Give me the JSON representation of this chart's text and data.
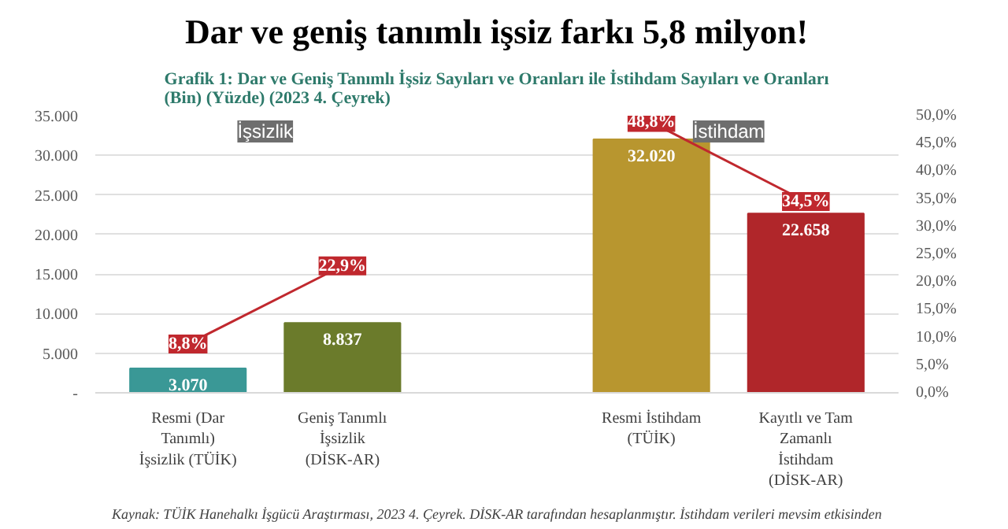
{
  "chart_data": {
    "type": "bar",
    "title": "Dar ve geniş tanımlı işsiz farkı 5,8 milyon!",
    "subtitle": "Grafik 1: Dar ve Geniş Tanımlı İşsiz Sayıları ve Oranları ile İstihdam Sayıları ve Oranları\n(Bin) (Yüzde) (2023 4. Çeyrek)",
    "categories": [
      "Resmi (Dar Tanımlı) İşsizlik (TÜİK)",
      "Geniş Tanımlı İşsizlik (DİSK-AR)",
      null,
      "Resmi İstihdam (TÜİK)",
      "Kayıtlı ve Tam Zamanlı İstihdam (DİSK-AR)"
    ],
    "series": [
      {
        "colors": [
          "#3a9896",
          "#6b7b2b",
          null,
          "#b8962f",
          "#b0262a"
        ],
        "values": [
          3070,
          8837,
          null,
          32020,
          22658
        ],
        "value_labels": [
          "3.070",
          "8.837",
          null,
          "32.020",
          "22.658"
        ]
      },
      {
        "type": "line",
        "marker": "square",
        "axis": "y2",
        "color": "#c0282e",
        "values": [
          8.8,
          22.9,
          null,
          48.8,
          34.5
        ],
        "value_labels": [
          "8,8%",
          "22,9%",
          null,
          "48,8%",
          "34,5%"
        ]
      }
    ],
    "ylim": [
      0,
      35000
    ],
    "yticks": [
      {
        "value": 0,
        "label": "-"
      },
      {
        "value": 5000,
        "label": "5.000"
      },
      {
        "value": 10000,
        "label": "10.000"
      },
      {
        "value": 15000,
        "label": "15.000"
      },
      {
        "value": 20000,
        "label": "20.000"
      },
      {
        "value": 25000,
        "label": "25.000"
      },
      {
        "value": 30000,
        "label": "30.000"
      },
      {
        "value": 35000,
        "label": "35.000"
      }
    ],
    "y2lim": [
      0,
      50
    ],
    "y2ticks": [
      {
        "value": 0,
        "label": "0,0%"
      },
      {
        "value": 5,
        "label": "5,0%"
      },
      {
        "value": 10,
        "label": "10,0%"
      },
      {
        "value": 15,
        "label": "15,0%"
      },
      {
        "value": 20,
        "label": "20,0%"
      },
      {
        "value": 25,
        "label": "25,0%"
      },
      {
        "value": 30,
        "label": "30,0%"
      },
      {
        "value": 35,
        "label": "35,0%"
      },
      {
        "value": 40,
        "label": "40,0%"
      },
      {
        "value": 45,
        "label": "45,0%"
      },
      {
        "value": 50,
        "label": "50,0%"
      }
    ],
    "grid": "y",
    "annotations": [
      "İşsizlik",
      "İstihdam",
      "Kaynak: TÜİK Hanehalkı İşgücü Araştırması, 2023 4. Çeyrek. DİSK-AR tarafından hesaplanmıştır. İstihdam verileri mevsim etkisinden"
    ]
  }
}
